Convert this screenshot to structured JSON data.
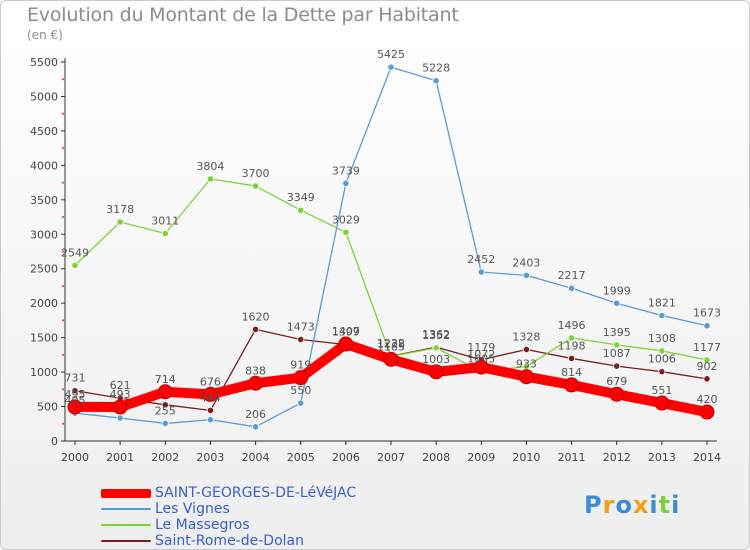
{
  "chart_data": {
    "type": "line",
    "title": "Evolution du Montant de la Dette par Habitant",
    "subtitle": "(en €)",
    "x": [
      "2000",
      "2001",
      "2002",
      "2003",
      "2004",
      "2005",
      "2006",
      "2007",
      "2008",
      "2009",
      "2010",
      "2011",
      "2012",
      "2013",
      "2014"
    ],
    "ylim": [
      0,
      5500
    ],
    "yticks": [
      "0",
      "500",
      "1000",
      "1500",
      "2000",
      "2500",
      "3000",
      "3500",
      "4000",
      "4500",
      "5000",
      "5500"
    ],
    "grid": false,
    "legend_position": "bottom-left",
    "series": [
      {
        "name": "SAINT-GEORGES-DE-LéVéJAC",
        "color": "#ff0000",
        "values": [
          495,
          493,
          714,
          676,
          838,
          919,
          1407,
          1185,
          1003,
          1072,
          933,
          814,
          679,
          551,
          420
        ],
        "labels": [
          "495",
          "493",
          "714",
          "676",
          "838",
          "919",
          "1407",
          "1185",
          "1003",
          "1072",
          "933",
          "814",
          "679",
          "551",
          "420"
        ]
      },
      {
        "name": "Les Vignes",
        "color": "#5b9bd5",
        "values": [
          405,
          333,
          255,
          308,
          206,
          550,
          3739,
          5425,
          5228,
          2452,
          2403,
          2217,
          1999,
          1821,
          1673
        ],
        "labels": [
          "405",
          "",
          "255",
          "",
          "206",
          "550",
          "3739",
          "5425",
          "5228",
          "2452",
          "2403",
          "2217",
          "1999",
          "1821",
          "1673"
        ]
      },
      {
        "name": "Le Massegros",
        "color": "#7dd13a",
        "values": [
          2549,
          3178,
          3011,
          3804,
          3700,
          3349,
          3029,
          1228,
          1352,
          1005,
          1081,
          1496,
          1395,
          1308,
          1177
        ],
        "labels": [
          "2549",
          "3178",
          "3011",
          "3804",
          "3700",
          "3349",
          "3029",
          "1228",
          "1352",
          "1005",
          "",
          "1496",
          "1395",
          "1308",
          "1177"
        ]
      },
      {
        "name": "Saint-Rome-de-Dolan",
        "color": "#7a1f1f",
        "values": [
          731,
          621,
          525,
          444,
          1620,
          1473,
          1399,
          1232,
          1362,
          1179,
          1328,
          1198,
          1087,
          1006,
          902
        ],
        "labels": [
          "731",
          "621",
          "",
          "444",
          "1620",
          "1473",
          "1399",
          "1232",
          "1362",
          "1179",
          "1328",
          "1198",
          "1087",
          "1006",
          "902"
        ]
      }
    ]
  },
  "brand": {
    "letters": [
      "P",
      "r",
      "o",
      "x",
      "i",
      "t",
      "i"
    ],
    "colors": [
      "#3a8dd6",
      "#f0a017",
      "#3a8dd6",
      "#f0a017",
      "#3a8dd6",
      "#7dd13a",
      "#3a8dd6"
    ]
  }
}
